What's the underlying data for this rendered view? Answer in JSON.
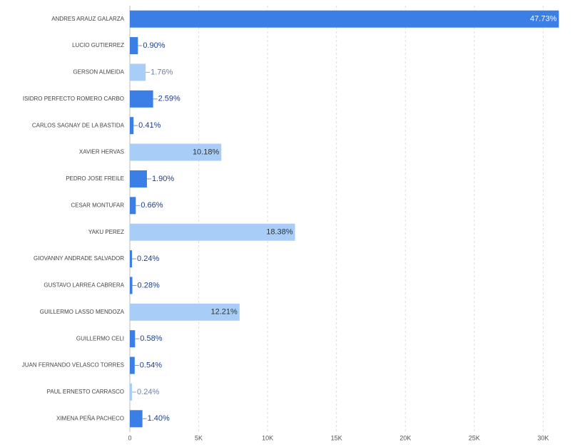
{
  "chart_data": {
    "type": "bar",
    "orientation": "horizontal",
    "categories": [
      "ANDRES ARAUZ GALARZA",
      "LUCIO GUTIERREZ",
      "GERSON ALMEIDA",
      "ISIDRO PERFECTO ROMERO CARBO",
      "CARLOS SAGNAY DE LA BASTIDA",
      "XAVIER HERVAS",
      "PEDRO JOSE FREILE",
      "CESAR MONTUFAR",
      "YAKU PEREZ",
      "GIOVANNY ANDRADE SALVADOR",
      "GUSTAVO LARREA CABRERA",
      "GUILLERMO LASSO MENDOZA",
      "GUILLERMO CELI",
      "JUAN FERNANDO VELASCO TORRES",
      "PAUL ERNESTO CARRASCO",
      "XIMENA PEÑA PACHECO"
    ],
    "values": [
      31139,
      587,
      1148,
      1690,
      267,
      6641,
      1240,
      431,
      11991,
      157,
      183,
      7966,
      378,
      352,
      157,
      913
    ],
    "value_labels": [
      "47.73%",
      "0.90%",
      "1.76%",
      "2.59%",
      "0.41%",
      "10.18%",
      "1.90%",
      "0.66%",
      "18.38%",
      "0.24%",
      "0.28%",
      "12.21%",
      "0.58%",
      "0.54%",
      "0.24%",
      "1.40%"
    ],
    "colors": [
      "#3a7ee6",
      "#3a7ee6",
      "#a8cef8",
      "#3a7ee6",
      "#3a7ee6",
      "#a8cef8",
      "#3a7ee6",
      "#3a7ee6",
      "#a8cef8",
      "#3a7ee6",
      "#3a7ee6",
      "#a8cef8",
      "#3a7ee6",
      "#3a7ee6",
      "#a8cef8",
      "#3a7ee6"
    ],
    "xlim": [
      0,
      32000
    ],
    "xticks": [
      0,
      {
        "value": 5000,
        "label": "5K"
      },
      {
        "value": 10000,
        "label": "10K"
      },
      {
        "value": 15000,
        "label": "15K"
      },
      {
        "value": 20000,
        "label": "20K"
      },
      {
        "value": 25000,
        "label": "25K"
      },
      {
        "value": 30000,
        "label": "30K"
      }
    ],
    "grid": true
  }
}
